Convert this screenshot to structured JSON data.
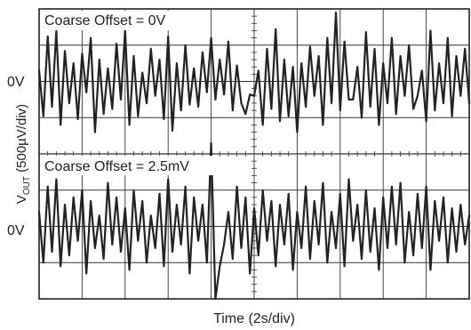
{
  "chart_data": {
    "type": "line",
    "xlabel": "Time (2s/div)",
    "ylabel_main": "V",
    "ylabel_sub": "OUT",
    "ylabel_rest": " (500µV/div)",
    "x_divisions": 10,
    "y_divisions": 8,
    "seconds_per_div": 2,
    "microvolts_per_div": 500,
    "xlim_s": [
      0,
      20
    ],
    "grid": true,
    "series": [
      {
        "panel_label": "Coarse Offset = 0V",
        "zero_label": "0V",
        "zero_line_div": 2,
        "x_s": [
          0.0,
          0.2,
          0.4,
          0.6,
          0.8,
          1.0,
          1.2,
          1.4,
          1.6,
          1.8,
          2.0,
          2.2,
          2.4,
          2.6,
          2.8,
          3.0,
          3.2,
          3.4,
          3.6,
          3.8,
          4.0,
          4.2,
          4.4,
          4.6,
          4.8,
          5.0,
          5.2,
          5.4,
          5.6,
          5.8,
          6.0,
          6.2,
          6.4,
          6.6,
          6.8,
          7.0,
          7.2,
          7.4,
          7.6,
          7.8,
          8.0,
          8.2,
          8.4,
          8.6,
          8.8,
          9.0,
          9.2,
          9.4,
          9.6,
          9.8,
          10.0,
          10.2,
          10.4,
          10.6,
          10.8,
          11.0,
          11.2,
          11.4,
          11.6,
          11.8,
          12.0,
          12.2,
          12.4,
          12.6,
          12.8,
          13.0,
          13.2,
          13.4,
          13.6,
          13.8,
          14.0,
          14.2,
          14.4,
          14.6,
          14.8,
          15.0,
          15.2,
          15.4,
          15.6,
          15.8,
          16.0,
          16.2,
          16.4,
          16.6,
          16.8,
          17.0,
          17.2,
          17.4,
          17.6,
          17.8,
          18.0,
          18.2,
          18.4,
          18.6,
          18.8,
          19.0,
          19.2,
          19.4,
          19.6,
          19.8,
          20.0
        ],
        "v_uv": [
          150,
          -480,
          620,
          -350,
          700,
          -600,
          420,
          -300,
          250,
          -520,
          380,
          -150,
          600,
          -700,
          300,
          -450,
          180,
          -380,
          520,
          -250,
          700,
          -600,
          350,
          -480,
          120,
          -300,
          450,
          -200,
          300,
          -520,
          620,
          -680,
          250,
          -400,
          500,
          -320,
          180,
          -350,
          400,
          -150,
          600,
          -250,
          300,
          -180,
          550,
          -400,
          220,
          -300,
          -450,
          -180,
          -200,
          150,
          -600,
          450,
          -380,
          720,
          -550,
          300,
          -480,
          200,
          -700,
          250,
          -350,
          480,
          -200,
          350,
          -600,
          600,
          -300,
          950,
          -400,
          550,
          -250,
          -250,
          200,
          -500,
          680,
          -350,
          450,
          -600,
          250,
          -300,
          600,
          -450,
          350,
          -200,
          500,
          -380,
          -200,
          150,
          -550,
          700,
          -400,
          250,
          -300,
          600,
          -480,
          350,
          -200,
          450,
          -300
        ],
        "color": "#222222"
      },
      {
        "panel_label": "Coarse Offset = 2.5mV",
        "zero_label": "0V",
        "zero_line_div": 6,
        "x_s": [
          0.0,
          0.2,
          0.4,
          0.6,
          0.8,
          1.0,
          1.2,
          1.4,
          1.6,
          1.8,
          2.0,
          2.2,
          2.4,
          2.6,
          2.8,
          3.0,
          3.2,
          3.4,
          3.6,
          3.8,
          4.0,
          4.2,
          4.4,
          4.6,
          4.8,
          5.0,
          5.2,
          5.4,
          5.6,
          5.8,
          6.0,
          6.2,
          6.4,
          6.6,
          6.8,
          7.0,
          7.2,
          7.4,
          7.6,
          7.8,
          8.0,
          8.2,
          8.4,
          8.6,
          8.8,
          9.0,
          9.2,
          9.4,
          9.6,
          9.8,
          10.0,
          10.2,
          10.4,
          10.6,
          10.8,
          11.0,
          11.2,
          11.4,
          11.6,
          11.8,
          12.0,
          12.2,
          12.4,
          12.6,
          12.8,
          13.0,
          13.2,
          13.4,
          13.6,
          13.8,
          14.0,
          14.2,
          14.4,
          14.6,
          14.8,
          15.0,
          15.2,
          15.4,
          15.6,
          15.8,
          16.0,
          16.2,
          16.4,
          16.6,
          16.8,
          17.0,
          17.2,
          17.4,
          17.6,
          17.8,
          18.0,
          18.2,
          18.4,
          18.6,
          18.8,
          19.0,
          19.2,
          19.4,
          19.6,
          19.8,
          20.0
        ],
        "v_uv": [
          200,
          -500,
          550,
          -350,
          650,
          -550,
          300,
          -400,
          400,
          -200,
          500,
          -650,
          350,
          -300,
          150,
          -450,
          600,
          -250,
          400,
          -350,
          250,
          -600,
          500,
          -200,
          350,
          -500,
          150,
          -300,
          450,
          -550,
          650,
          -350,
          300,
          -250,
          550,
          -650,
          400,
          -200,
          300,
          -500,
          1150,
          -1000,
          -550,
          -250,
          200,
          -450,
          550,
          -300,
          400,
          -650,
          250,
          -400,
          500,
          -200,
          350,
          -550,
          300,
          -250,
          450,
          -600,
          200,
          -300,
          550,
          -450,
          350,
          -250,
          600,
          -500,
          200,
          -300,
          450,
          -550,
          650,
          -200,
          300,
          -450,
          500,
          -350,
          250,
          -600,
          400,
          -300,
          550,
          -250,
          600,
          -500,
          200,
          -400,
          450,
          -300,
          550,
          -600,
          350,
          -200,
          400,
          -500,
          250,
          -350,
          300,
          -250,
          150
        ],
        "color": "#222222"
      }
    ]
  }
}
